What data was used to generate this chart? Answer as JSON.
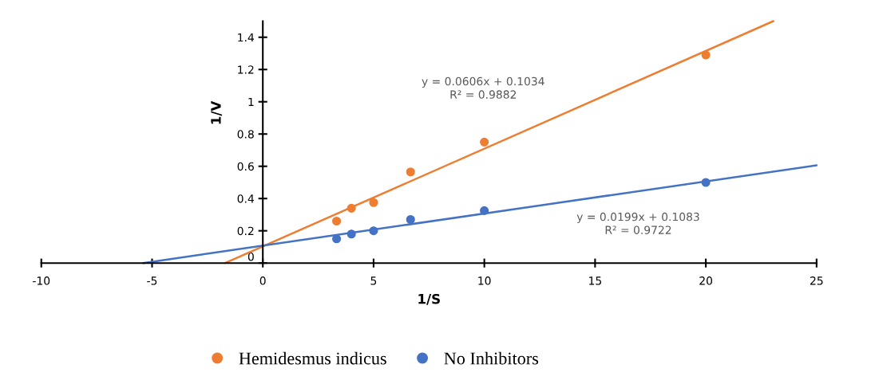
{
  "chart_data": {
    "type": "scatter",
    "xlabel": "1/S",
    "ylabel": "1/V",
    "xlim": [
      -10,
      25
    ],
    "xticks": [
      -10,
      -5,
      0,
      5,
      10,
      15,
      20,
      25
    ],
    "ylim": [
      0,
      1.5
    ],
    "yticks": [
      0,
      0.2,
      0.4,
      0.6,
      0.8,
      1,
      1.2,
      1.4
    ],
    "x": [
      3.33,
      4,
      5,
      6.67,
      10,
      20
    ],
    "series": [
      {
        "name": "Hemidesmus indicus",
        "color": "#ed7d31",
        "values": [
          0.26,
          0.34,
          0.375,
          0.565,
          0.75,
          1.29
        ]
      },
      {
        "name": "No Inhibitors",
        "color": "#4472c4",
        "values": [
          0.15,
          0.18,
          0.2,
          0.27,
          0.325,
          0.5
        ]
      },
      {
        "type": "line",
        "marker": "none",
        "color": "#ed7d31",
        "x": [
          -1.7,
          23.05
        ],
        "values": [
          0,
          1.5
        ]
      },
      {
        "type": "line",
        "marker": "none",
        "color": "#4472c4",
        "x": [
          -5.4,
          25
        ],
        "values": [
          0,
          0.606
        ]
      }
    ],
    "annotations": [
      "y = 0.0606x + 0.1034\nR² = 0.9882",
      "y = 0.0199x + 0.1083\nR² = 0.9722"
    ],
    "marker": "circle",
    "grid": false,
    "legend": "bottom"
  }
}
